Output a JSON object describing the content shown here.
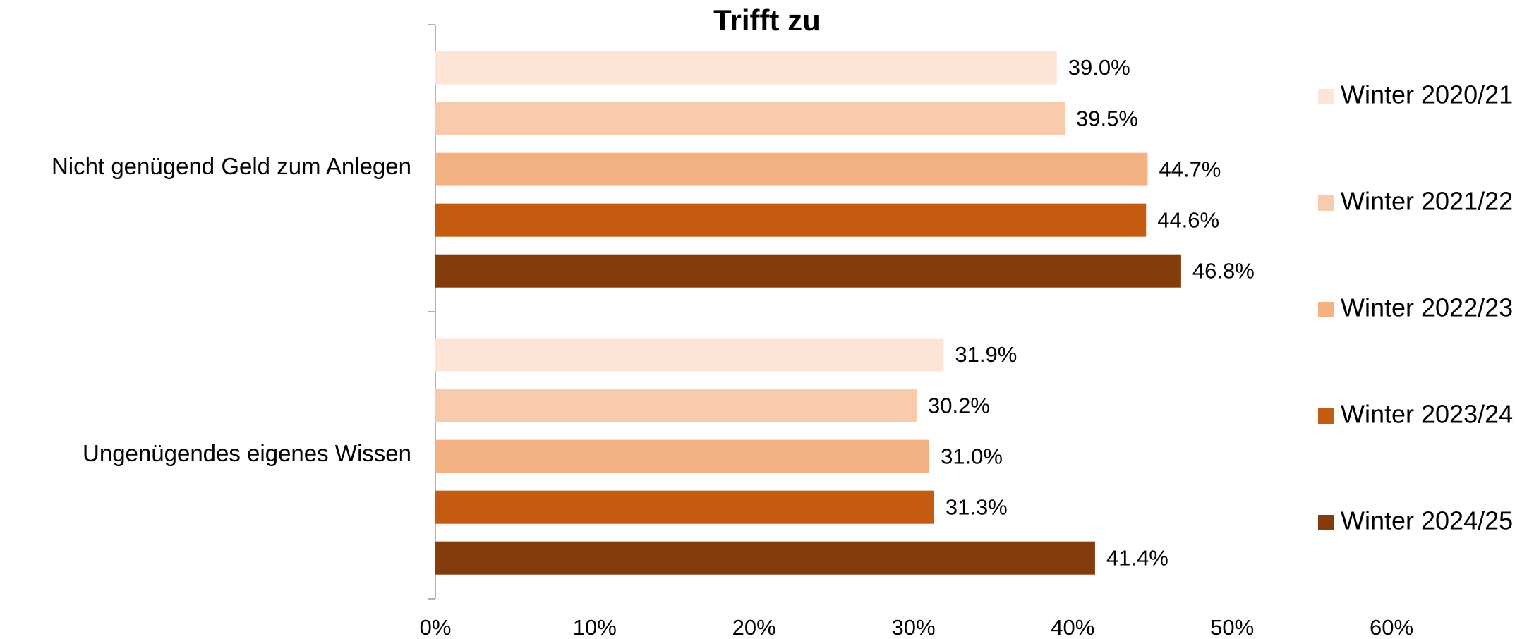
{
  "chart_data": {
    "type": "bar",
    "orientation": "horizontal",
    "title": "Trifft zu",
    "categories": [
      "Nicht genügend Geld zum Anlegen",
      "Ungenügendes eigenes Wissen"
    ],
    "series": [
      {
        "name": "Winter 2020/21",
        "color": "#fce4d6",
        "values": [
          39.0,
          31.9
        ],
        "value_labels": [
          "39.0%",
          "31.9%"
        ]
      },
      {
        "name": "Winter 2021/22",
        "color": "#f8cbad",
        "values": [
          39.5,
          30.2
        ],
        "value_labels": [
          "39.5%",
          "30.2%"
        ]
      },
      {
        "name": "Winter 2022/23",
        "color": "#f4b183",
        "values": [
          44.7,
          31.0
        ],
        "value_labels": [
          "44.7%",
          "31.0%"
        ]
      },
      {
        "name": "Winter 2023/24",
        "color": "#c55a11",
        "values": [
          44.6,
          31.3
        ],
        "value_labels": [
          "44.6%",
          "31.3%"
        ]
      },
      {
        "name": "Winter 2024/25",
        "color": "#843c0c",
        "values": [
          46.8,
          41.4
        ],
        "value_labels": [
          "46.8%",
          "41.4%"
        ]
      }
    ],
    "xlim": [
      0,
      60
    ],
    "xticks": [
      {
        "value": 0,
        "label": "0%"
      },
      {
        "value": 10,
        "label": "10%"
      },
      {
        "value": 20,
        "label": "20%"
      },
      {
        "value": 30,
        "label": "30%"
      },
      {
        "value": 40,
        "label": "40%"
      },
      {
        "value": 50,
        "label": "50%"
      },
      {
        "value": 60,
        "label": "60%"
      }
    ],
    "grid": false,
    "legend": "right"
  }
}
